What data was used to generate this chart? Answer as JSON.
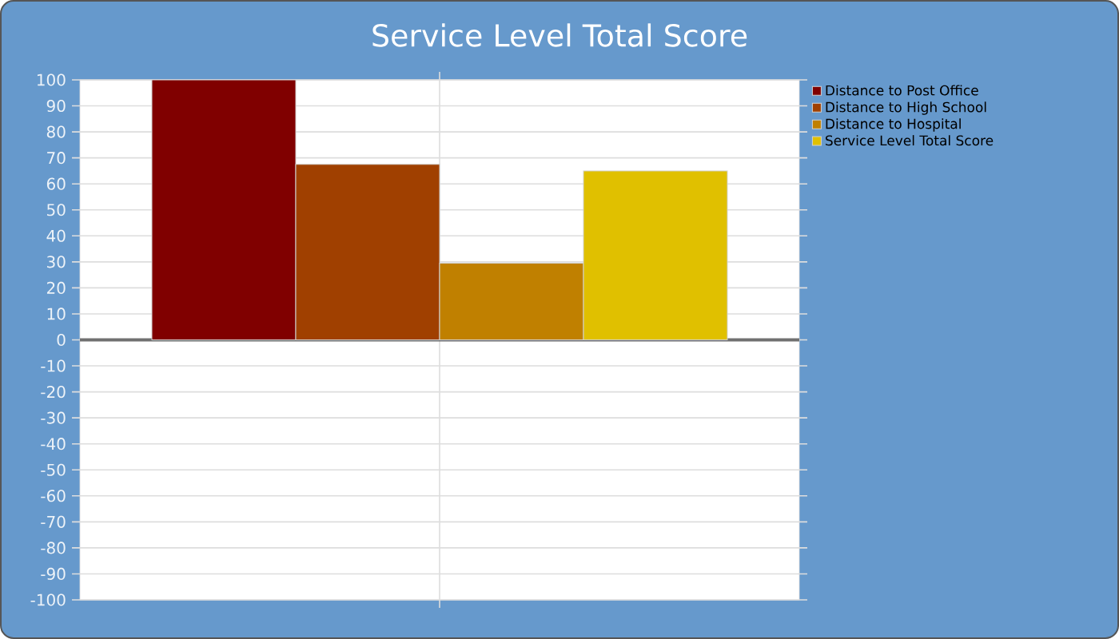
{
  "chart_data": {
    "type": "bar",
    "title": "Service Level Total Score",
    "categories": [
      null
    ],
    "series": [
      {
        "name": "Distance to Post Office",
        "color": "#800000",
        "values": [
          100
        ]
      },
      {
        "name": "Distance to High School",
        "color": "#a04000",
        "values": [
          67.5
        ]
      },
      {
        "name": "Distance to Hospital",
        "color": "#c08000",
        "values": [
          29.5
        ]
      },
      {
        "name": "Service Level Total Score",
        "color": "#e0c000",
        "values": [
          65
        ]
      }
    ],
    "ylim": [
      -100,
      100
    ],
    "yticks": [
      -100,
      -90,
      -80,
      -70,
      -60,
      -50,
      -40,
      -30,
      -20,
      -10,
      0,
      10,
      20,
      30,
      40,
      50,
      60,
      70,
      80,
      90,
      100
    ],
    "grid": true,
    "legend": "right"
  }
}
